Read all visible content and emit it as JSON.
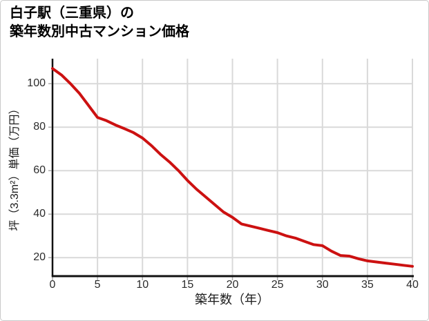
{
  "title": {
    "lines": [
      "白子駅（三重県）の",
      "築年数別中古マンション価格"
    ]
  },
  "chart_data": {
    "type": "line",
    "title": "白子駅（三重県）の築年数別中古マンション価格",
    "xlabel": "築年数（年）",
    "ylabel": "坪（3.3m²）単価（万円）",
    "x": [
      0,
      1,
      2,
      3,
      4,
      5,
      6,
      7,
      8,
      9,
      10,
      11,
      12,
      13,
      14,
      15,
      16,
      17,
      18,
      19,
      20,
      21,
      22,
      23,
      24,
      25,
      26,
      27,
      28,
      29,
      30,
      31,
      32,
      33,
      34,
      35,
      36,
      37,
      38,
      39,
      40
    ],
    "values": [
      107,
      104,
      100,
      95.5,
      90,
      84.5,
      83,
      81,
      79.3,
      77.5,
      75,
      71.5,
      67.5,
      64,
      60,
      55.5,
      51.5,
      48,
      44.5,
      41,
      38.5,
      35.5,
      34.5,
      33.5,
      32.5,
      31.5,
      30,
      29,
      27.5,
      26,
      25.5,
      23,
      21,
      20.7,
      19.5,
      18.5,
      18,
      17.5,
      17,
      16.5,
      16
    ],
    "xlim": [
      0,
      40
    ],
    "ylim": [
      11.5,
      111.5
    ],
    "xticks": [
      0,
      5,
      10,
      15,
      20,
      25,
      30,
      35,
      40
    ],
    "yticks": [
      20,
      40,
      60,
      80,
      100
    ],
    "grid": true,
    "legend": "none",
    "colors": {
      "line": "#cc1111",
      "grid": "#d9d9d9",
      "axis": "#111111",
      "tick": "#aaaaaa",
      "tick_label": "#2b2b2b",
      "title_text": "#000000",
      "background": "#ffffff",
      "card_border": "#c9c9c9"
    }
  }
}
